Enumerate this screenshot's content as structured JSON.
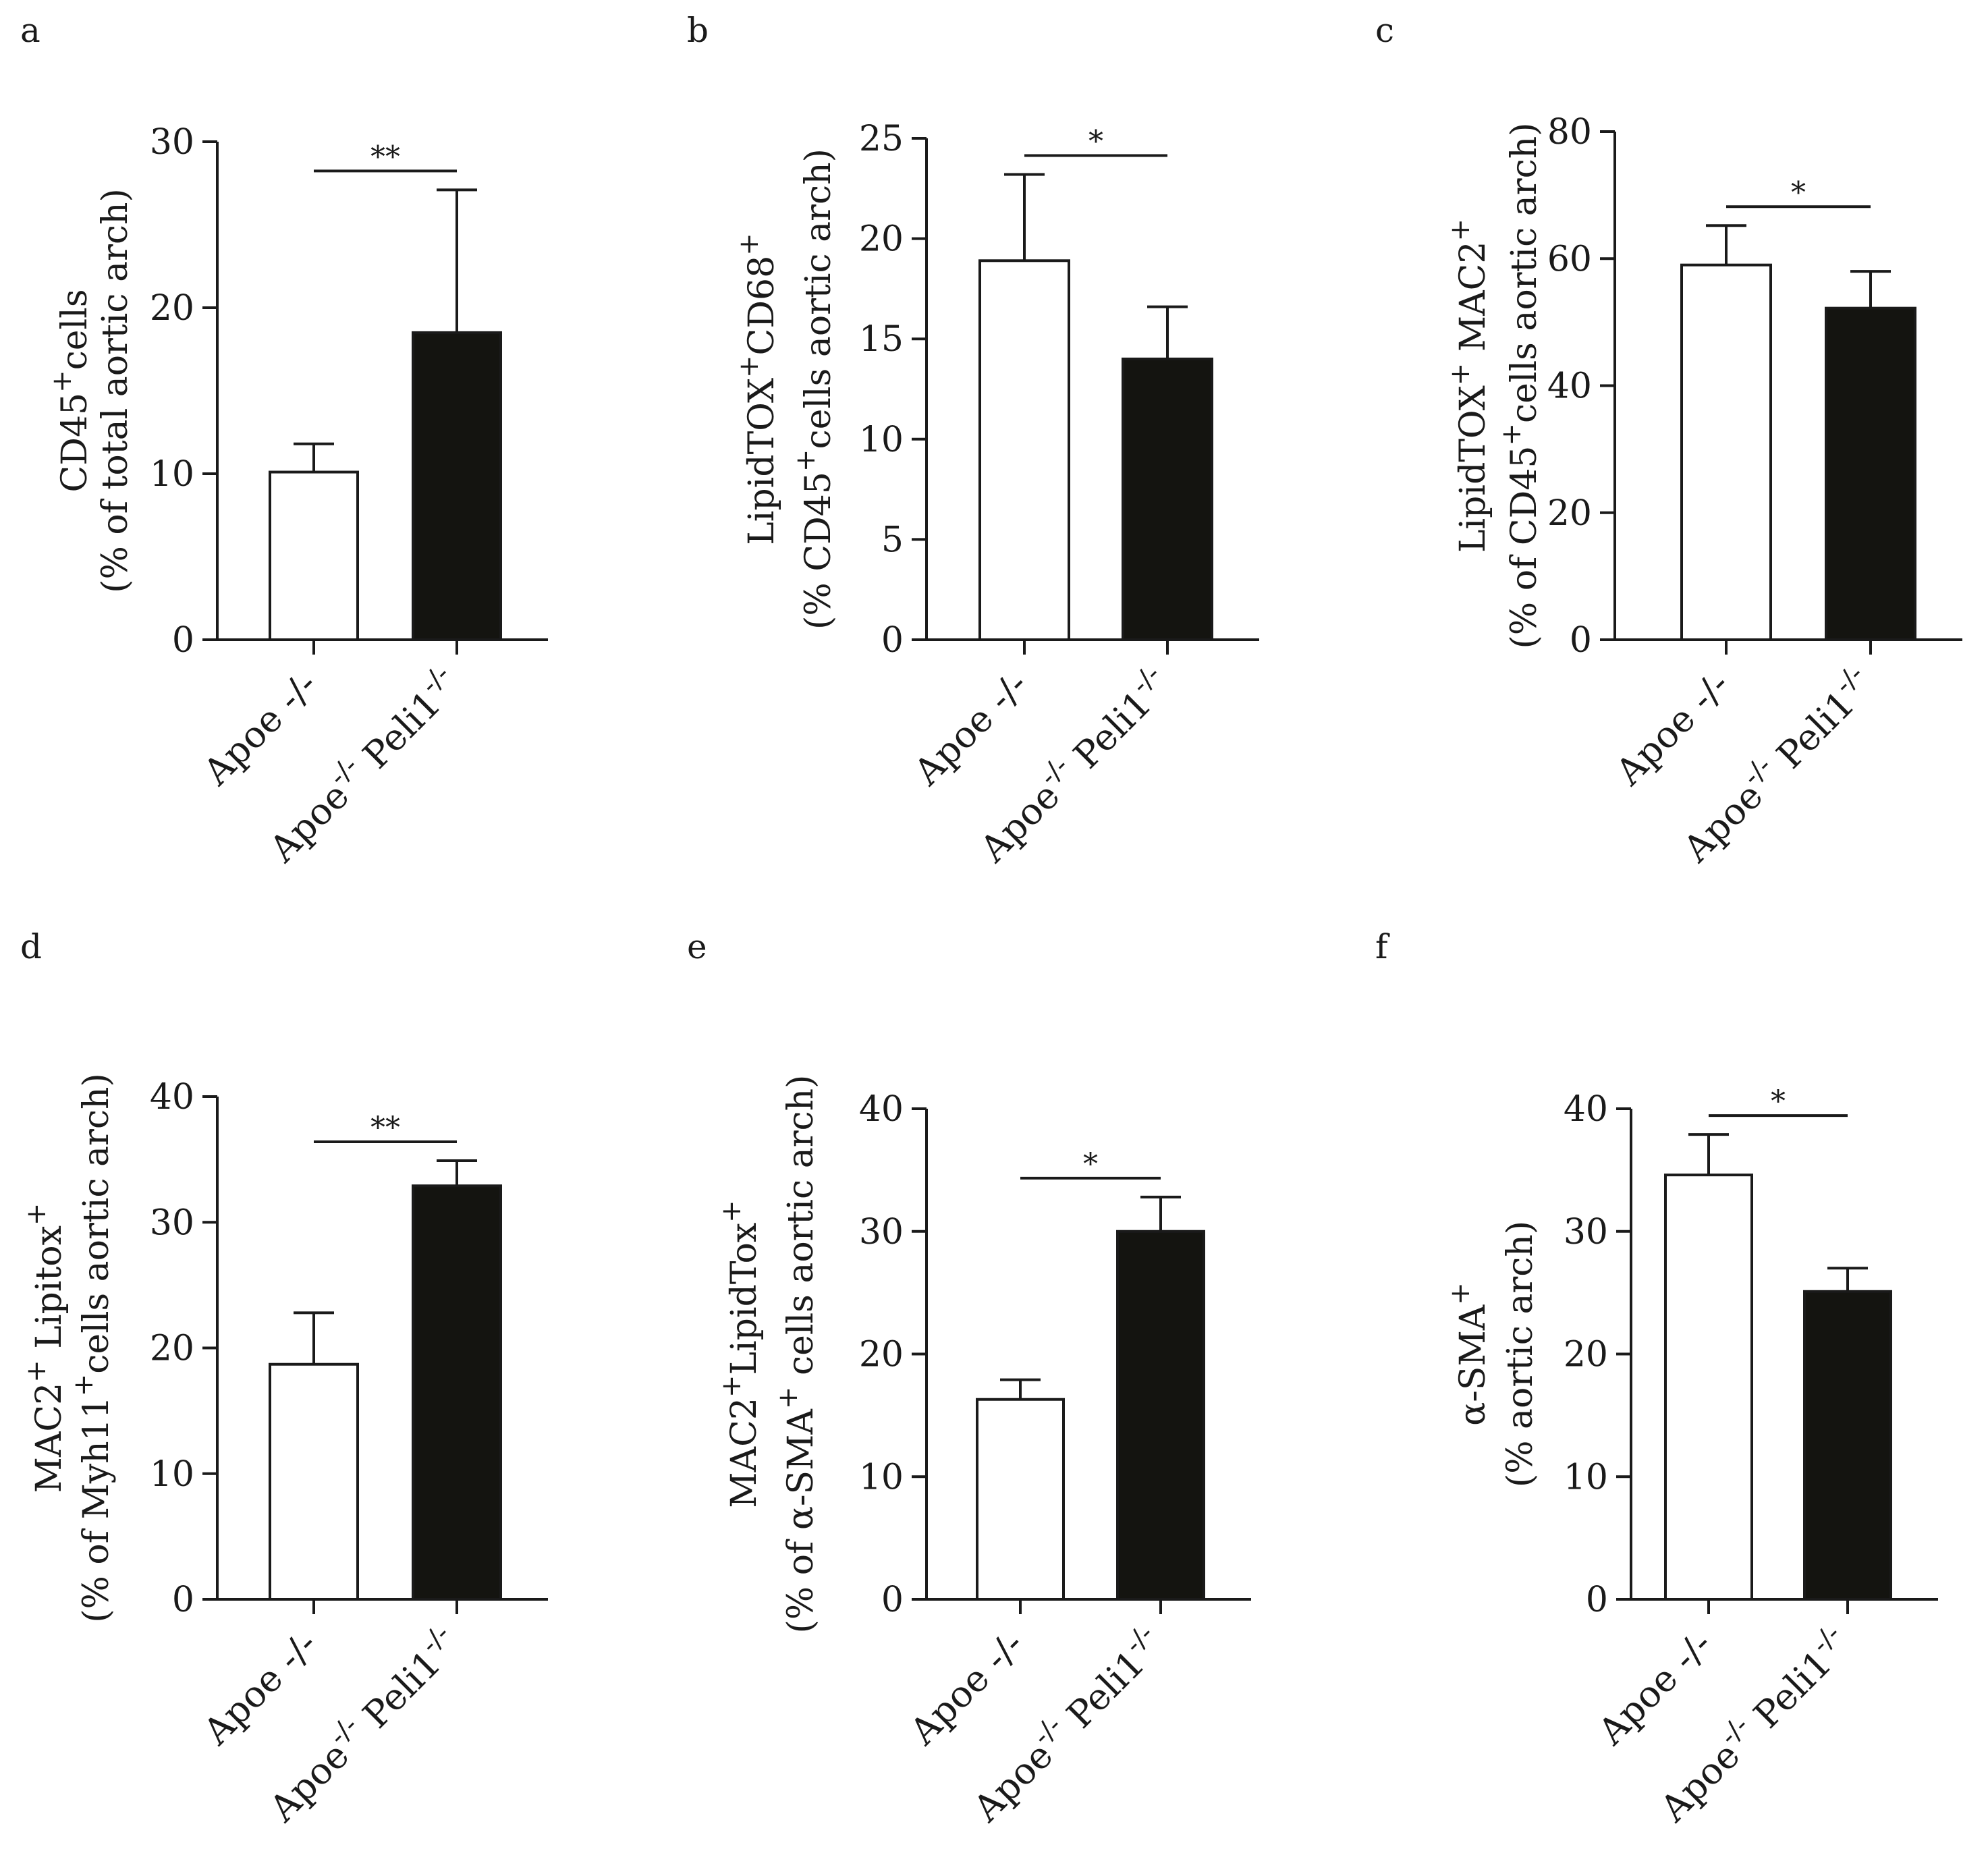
{
  "figure": {
    "panels": [
      "a",
      "b",
      "c",
      "d",
      "e",
      "f"
    ]
  },
  "chart_data": [
    {
      "panel": "a",
      "type": "bar",
      "title": "",
      "ylabel_line1": "CD45",
      "ylabel_line1_sup": "+",
      "ylabel_line1_suffix": "cells",
      "ylabel_line2": "(% of total aortic arch)",
      "categories": [
        "Apoe -/-",
        "Apoe-/- Peli1-/-"
      ],
      "category_labels": [
        {
          "main": "Apoe -/-"
        },
        {
          "prefix": "Apoe",
          "sup1": "-/-",
          "mid": " Peli1",
          "sup2": "-/-"
        }
      ],
      "values": [
        10.1,
        18.5
      ],
      "errors": [
        1.7,
        8.6
      ],
      "fills": [
        "#ffffff",
        "#141410"
      ],
      "ylim": [
        0,
        30
      ],
      "yticks": [
        "0",
        "10",
        "20",
        "30"
      ],
      "significance": "**"
    },
    {
      "panel": "b",
      "type": "bar",
      "title": "",
      "ylabel_line1": "LipidTOX",
      "ylabel_line1_sup": "+",
      "ylabel_line1_suffix": "CD68",
      "ylabel_line1_sup2": "+",
      "ylabel_line2": "(% CD45",
      "ylabel_line2_sup": "+",
      "ylabel_line2_suffix": "cells aortic arch)",
      "categories": [
        "Apoe -/-",
        "Apoe-/- Peli1-/-"
      ],
      "category_labels": [
        {
          "main": "Apoe -/-"
        },
        {
          "prefix": "Apoe",
          "sup1": "-/-",
          "mid": " Peli1",
          "sup2": "-/-"
        }
      ],
      "values": [
        18.9,
        14.0
      ],
      "errors": [
        4.3,
        2.6
      ],
      "fills": [
        "#ffffff",
        "#141410"
      ],
      "ylim": [
        0,
        25
      ],
      "yticks": [
        "0",
        "5",
        "10",
        "15",
        "20",
        "25"
      ],
      "significance": "*"
    },
    {
      "panel": "c",
      "type": "bar",
      "title": "",
      "ylabel_line1": "LipidTOX",
      "ylabel_line1_sup": "+",
      "ylabel_line1_suffix": " MAC2",
      "ylabel_line1_sup2": "+",
      "ylabel_line2": "(% of CD45",
      "ylabel_line2_sup": "+",
      "ylabel_line2_suffix": "cells aortic arch)",
      "categories": [
        "Apoe -/-",
        "Apoe-/- Peli1-/-"
      ],
      "category_labels": [
        {
          "main": "Apoe -/-"
        },
        {
          "prefix": "Apoe",
          "sup1": "-/-",
          "mid": " Peli1",
          "sup2": "-/-"
        }
      ],
      "values": [
        59.0,
        52.2
      ],
      "errors": [
        6.2,
        5.8
      ],
      "fills": [
        "#ffffff",
        "#141410"
      ],
      "ylim": [
        0,
        80
      ],
      "yticks": [
        "0",
        "20",
        "40",
        "60",
        "80"
      ],
      "significance": "*"
    },
    {
      "panel": "d",
      "type": "bar",
      "title": "",
      "ylabel_line1": "MAC2",
      "ylabel_line1_sup": "+",
      "ylabel_line1_suffix": " Lipitox",
      "ylabel_line1_sup2": "+",
      "ylabel_line2": "(% of Myh11",
      "ylabel_line2_sup": "+",
      "ylabel_line2_suffix": "cells aortic arch)",
      "categories": [
        "Apoe -/-",
        "Apoe-/- Peli1-/-"
      ],
      "category_labels": [
        {
          "main": "Apoe -/-"
        },
        {
          "prefix": "Apoe",
          "sup1": "-/-",
          "mid": " Peli1",
          "sup2": "-/-"
        }
      ],
      "values": [
        18.7,
        32.9
      ],
      "errors": [
        4.1,
        2.0
      ],
      "fills": [
        "#ffffff",
        "#141410"
      ],
      "ylim": [
        0,
        40
      ],
      "yticks": [
        "0",
        "10",
        "20",
        "30",
        "40"
      ],
      "significance": "**"
    },
    {
      "panel": "e",
      "type": "bar",
      "title": "",
      "ylabel_line1": "MAC2",
      "ylabel_line1_sup": "+",
      "ylabel_line1_suffix": "LipidTox",
      "ylabel_line1_sup2": "+",
      "ylabel_line2": "(% of α-SMA",
      "ylabel_line2_sup": "+",
      "ylabel_line2_suffix": " cells aortic arch)",
      "categories": [
        "Apoe -/-",
        "Apoe-/- Peli1-/-"
      ],
      "category_labels": [
        {
          "main": "Apoe -/-"
        },
        {
          "prefix": "Apoe",
          "sup1": "-/-",
          "mid": " Peli1",
          "sup2": "-/-"
        }
      ],
      "values": [
        16.3,
        30.0
      ],
      "errors": [
        1.6,
        2.8
      ],
      "fills": [
        "#ffffff",
        "#141410"
      ],
      "ylim": [
        0,
        40
      ],
      "yticks": [
        "0",
        "10",
        "20",
        "30",
        "40"
      ],
      "significance": "*"
    },
    {
      "panel": "f",
      "type": "bar",
      "title": "",
      "ylabel_line1": "α-SMA",
      "ylabel_line1_sup": "+",
      "ylabel_line1_suffix": "",
      "ylabel_line2": "(% aortic arch)",
      "categories": [
        "Apoe -/-",
        "Apoe-/- Peli1-/-"
      ],
      "category_labels": [
        {
          "main": "Apoe -/-"
        },
        {
          "prefix": "Apoe",
          "sup1": "-/-",
          "mid": " Peli1",
          "sup2": "-/-"
        }
      ],
      "values": [
        34.6,
        25.1
      ],
      "errors": [
        3.3,
        1.9
      ],
      "fills": [
        "#ffffff",
        "#141410"
      ],
      "ylim": [
        0,
        40
      ],
      "yticks": [
        "0",
        "10",
        "20",
        "30",
        "40"
      ],
      "significance": "*"
    }
  ]
}
